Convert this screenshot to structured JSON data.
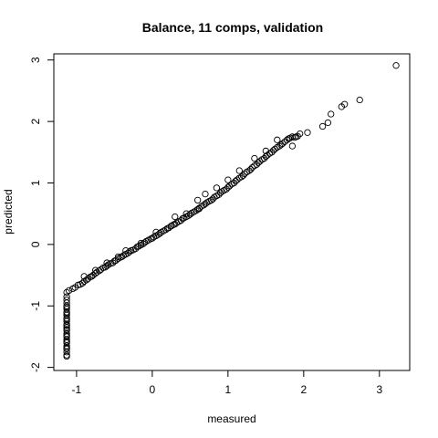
{
  "chart_data": {
    "type": "scatter",
    "title": "Balance, 11 comps, validation",
    "xlabel": "measured",
    "ylabel": "predicted",
    "xlim": [
      -1.3,
      3.4
    ],
    "ylim": [
      -2.05,
      3.1
    ],
    "xticks": [
      -1,
      0,
      1,
      2,
      3
    ],
    "yticks": [
      -2,
      -1,
      0,
      1,
      2,
      3
    ],
    "xtick_labels": [
      "-1",
      "0",
      "1",
      "2",
      "3"
    ],
    "ytick_labels": [
      "-2",
      "-1",
      "0",
      "1",
      "2",
      "3"
    ],
    "grid": false,
    "legend": "none",
    "marker": "open-circle",
    "marker_color": "#000000",
    "series": [
      {
        "x": [
          -1.13,
          -1.13,
          -1.13,
          -1.13,
          -1.13,
          -1.13,
          -1.13,
          -1.13,
          -1.13,
          -1.13,
          -1.13,
          -1.13,
          -1.13,
          -1.13,
          -1.13,
          -1.13,
          -1.13,
          -1.13,
          -1.13,
          -1.13,
          -1.13,
          -1.13,
          -1.13,
          -1.13,
          -1.13,
          -1.13,
          -1.13,
          -1.13,
          -1.13,
          -1.13,
          -1.1,
          -1.05,
          -1.02,
          -0.98,
          -0.95,
          -0.92,
          -0.9,
          -0.87,
          -0.85,
          -0.82,
          -0.8,
          -0.78,
          -0.75,
          -0.73,
          -0.7,
          -0.68,
          -0.65,
          -0.62,
          -0.6,
          -0.58,
          -0.55,
          -0.52,
          -0.5,
          -0.48,
          -0.45,
          -0.42,
          -0.4,
          -0.38,
          -0.35,
          -0.32,
          -0.3,
          -0.28,
          -0.25,
          -0.22,
          -0.2,
          -0.18,
          -0.15,
          -0.12,
          -0.1,
          -0.08,
          -0.05,
          -0.02,
          0.0,
          0.02,
          0.05,
          0.08,
          0.1,
          0.12,
          0.15,
          0.18,
          0.2,
          0.22,
          0.25,
          0.28,
          0.3,
          0.32,
          0.35,
          0.38,
          0.4,
          0.42,
          0.45,
          0.48,
          0.5,
          0.52,
          0.55,
          0.58,
          0.6,
          0.62,
          0.65,
          0.68,
          0.7,
          0.72,
          0.75,
          0.78,
          0.8,
          0.82,
          0.85,
          0.88,
          0.9,
          0.92,
          0.95,
          0.98,
          1.0,
          1.02,
          1.05,
          1.08,
          1.1,
          1.12,
          1.15,
          1.18,
          1.2,
          1.22,
          1.25,
          1.28,
          1.3,
          1.32,
          1.35,
          1.38,
          1.4,
          1.42,
          1.45,
          1.48,
          1.5,
          1.52,
          1.55,
          1.58,
          1.6,
          1.62,
          1.65,
          1.68,
          1.7,
          1.72,
          1.75,
          1.78,
          1.8,
          1.82,
          1.85,
          1.88,
          1.9,
          1.92,
          1.95,
          2.05,
          2.25,
          2.32,
          2.36,
          2.5,
          2.54,
          2.74,
          3.22,
          -0.9,
          -0.75,
          -0.6,
          -0.45,
          -0.35,
          -0.15,
          0.05,
          0.25,
          0.45,
          0.6,
          0.7,
          0.85,
          1.0,
          1.15,
          1.35,
          1.5,
          1.65,
          1.85,
          0.62,
          0.3
        ],
        "y": [
          -0.85,
          -0.9,
          -0.95,
          -1.0,
          -1.05,
          -1.1,
          -1.15,
          -1.2,
          -1.25,
          -1.3,
          -1.35,
          -1.4,
          -1.45,
          -1.5,
          -1.55,
          -1.6,
          -1.65,
          -1.7,
          -1.75,
          -1.8,
          -1.82,
          -0.78,
          -1.02,
          -1.22,
          -1.38,
          -1.48,
          -1.58,
          -1.68,
          -1.12,
          -1.32,
          -0.75,
          -0.72,
          -0.7,
          -0.66,
          -0.65,
          -0.63,
          -0.6,
          -0.58,
          -0.56,
          -0.53,
          -0.52,
          -0.5,
          -0.47,
          -0.45,
          -0.43,
          -0.41,
          -0.38,
          -0.37,
          -0.35,
          -0.33,
          -0.31,
          -0.3,
          -0.27,
          -0.26,
          -0.23,
          -0.21,
          -0.2,
          -0.18,
          -0.16,
          -0.14,
          -0.12,
          -0.1,
          -0.09,
          -0.07,
          -0.04,
          -0.03,
          -0.01,
          0.01,
          0.03,
          0.05,
          0.07,
          0.09,
          0.1,
          0.12,
          0.14,
          0.16,
          0.18,
          0.2,
          0.22,
          0.24,
          0.26,
          0.27,
          0.3,
          0.32,
          0.33,
          0.35,
          0.37,
          0.39,
          0.42,
          0.43,
          0.45,
          0.47,
          0.49,
          0.51,
          0.53,
          0.55,
          0.57,
          0.59,
          0.62,
          0.64,
          0.66,
          0.68,
          0.7,
          0.72,
          0.74,
          0.77,
          0.79,
          0.81,
          0.84,
          0.86,
          0.88,
          0.9,
          0.93,
          0.95,
          0.98,
          1.0,
          1.03,
          1.05,
          1.08,
          1.1,
          1.12,
          1.15,
          1.18,
          1.2,
          1.22,
          1.25,
          1.28,
          1.3,
          1.33,
          1.35,
          1.38,
          1.4,
          1.43,
          1.45,
          1.48,
          1.5,
          1.53,
          1.55,
          1.58,
          1.6,
          1.62,
          1.64,
          1.67,
          1.7,
          1.72,
          1.73,
          1.75,
          1.74,
          1.75,
          1.76,
          1.8,
          1.82,
          1.92,
          1.98,
          2.12,
          2.24,
          2.28,
          2.35,
          2.91,
          -0.52,
          -0.42,
          -0.3,
          -0.2,
          -0.1,
          0.02,
          0.2,
          0.3,
          0.5,
          0.72,
          0.82,
          0.92,
          1.05,
          1.2,
          1.4,
          1.52,
          1.7,
          1.6,
          0.58,
          0.45
        ]
      }
    ]
  }
}
